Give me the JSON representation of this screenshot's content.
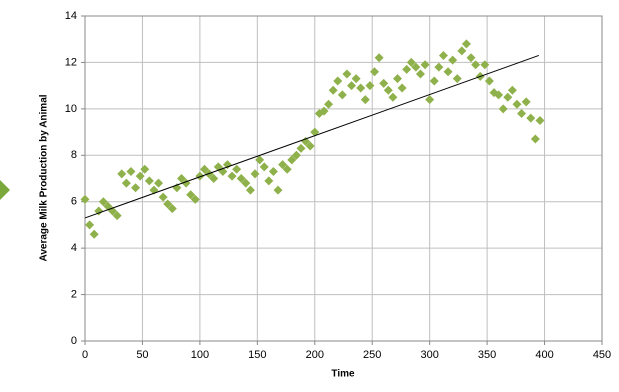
{
  "chart_data": {
    "type": "scatter",
    "x_label": "Time",
    "y_label": "Average Milk Production by Animal",
    "color": "#8fb14c",
    "grid": true,
    "xlim": [
      0,
      450
    ],
    "ylim": [
      0,
      14
    ],
    "xticks": [
      0,
      50,
      100,
      150,
      200,
      250,
      300,
      350,
      400,
      450
    ],
    "yticks": [
      0,
      2,
      4,
      6,
      8,
      10,
      12,
      14
    ],
    "x": [
      0,
      4,
      8,
      12,
      16,
      20,
      24,
      28,
      32,
      36,
      40,
      44,
      48,
      52,
      56,
      60,
      64,
      68,
      72,
      76,
      80,
      84,
      88,
      92,
      96,
      100,
      104,
      108,
      112,
      116,
      120,
      124,
      128,
      132,
      136,
      140,
      144,
      148,
      152,
      156,
      160,
      164,
      168,
      172,
      176,
      180,
      184,
      188,
      192,
      196,
      200,
      204,
      208,
      212,
      216,
      220,
      224,
      228,
      232,
      236,
      240,
      244,
      248,
      252,
      256,
      260,
      264,
      268,
      272,
      276,
      280,
      284,
      288,
      292,
      296,
      300,
      304,
      308,
      312,
      316,
      320,
      324,
      328,
      332,
      336,
      340,
      344,
      348,
      352,
      356,
      360,
      364,
      368,
      372,
      376,
      380,
      384,
      388,
      392,
      396
    ],
    "values": [
      6.1,
      5.0,
      4.6,
      5.6,
      6.0,
      5.8,
      5.6,
      5.4,
      7.2,
      6.8,
      7.3,
      6.6,
      7.1,
      7.4,
      6.9,
      6.5,
      6.8,
      6.2,
      5.9,
      5.7,
      6.6,
      7.0,
      6.8,
      6.3,
      6.1,
      7.1,
      7.4,
      7.2,
      7.0,
      7.5,
      7.3,
      7.6,
      7.1,
      7.4,
      7.0,
      6.8,
      6.5,
      7.2,
      7.8,
      7.5,
      6.9,
      7.3,
      6.5,
      7.6,
      7.4,
      7.8,
      8.0,
      8.3,
      8.6,
      8.4,
      9.0,
      9.8,
      9.9,
      10.2,
      10.8,
      11.2,
      10.6,
      11.5,
      11.0,
      11.3,
      10.9,
      10.4,
      11.0,
      11.6,
      12.2,
      11.1,
      10.8,
      10.5,
      11.3,
      10.9,
      11.7,
      12.0,
      11.8,
      11.5,
      11.9,
      10.4,
      11.2,
      11.8,
      12.3,
      11.6,
      12.1,
      11.3,
      12.5,
      12.8,
      12.2,
      11.9,
      11.4,
      11.9,
      11.2,
      10.7,
      10.6,
      10.0,
      10.5,
      10.8,
      10.2,
      9.8,
      10.3,
      9.6,
      8.7,
      9.5
    ],
    "trendline": {
      "x": [
        0,
        395
      ],
      "values": [
        5.3,
        12.3
      ],
      "color": "#000000"
    }
  }
}
